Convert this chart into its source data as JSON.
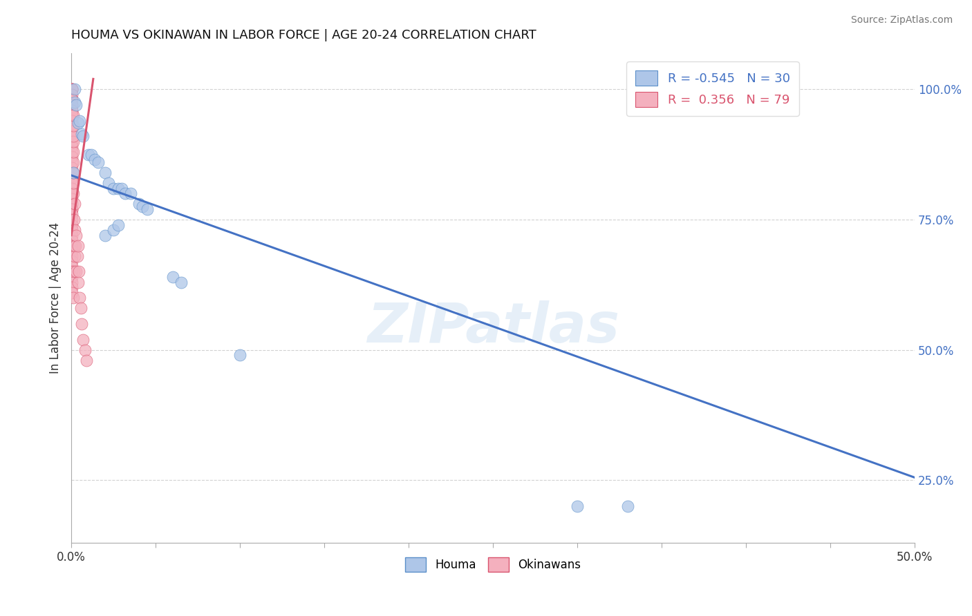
{
  "title": "HOUMA VS OKINAWAN IN LABOR FORCE | AGE 20-24 CORRELATION CHART",
  "source": "Source: ZipAtlas.com",
  "ylabel": "In Labor Force | Age 20-24",
  "xlim": [
    0.0,
    0.5
  ],
  "ylim": [
    0.13,
    1.07
  ],
  "houma_color": "#aec6e8",
  "okinawan_color": "#f4b0be",
  "houma_edge_color": "#5b8fc9",
  "okinawan_edge_color": "#d9546e",
  "houma_line_color": "#4472c4",
  "okinawan_line_color": "#d9546e",
  "legend_R_houma": "-0.545",
  "legend_N_houma": "30",
  "legend_R_okinawan": "0.356",
  "legend_N_okinawan": "79",
  "background_color": "#ffffff",
  "grid_color": "#cccccc",
  "watermark": "ZIPatlas",
  "houma_x": [
    0.001,
    0.002,
    0.002,
    0.003,
    0.004,
    0.005,
    0.006,
    0.007,
    0.01,
    0.012,
    0.014,
    0.016,
    0.02,
    0.022,
    0.025,
    0.028,
    0.03,
    0.032,
    0.035,
    0.04,
    0.042,
    0.045,
    0.06,
    0.065,
    0.1,
    0.3,
    0.33,
    0.02,
    0.025,
    0.028
  ],
  "houma_y": [
    0.84,
    1.0,
    0.975,
    0.97,
    0.935,
    0.94,
    0.915,
    0.91,
    0.875,
    0.875,
    0.865,
    0.86,
    0.84,
    0.82,
    0.81,
    0.81,
    0.81,
    0.8,
    0.8,
    0.78,
    0.775,
    0.77,
    0.64,
    0.63,
    0.49,
    0.2,
    0.2,
    0.72,
    0.73,
    0.74
  ],
  "okinawan_x": [
    0.0005,
    0.0005,
    0.0005,
    0.0005,
    0.0005,
    0.0005,
    0.0005,
    0.0005,
    0.0005,
    0.0005,
    0.0005,
    0.0005,
    0.0005,
    0.0005,
    0.0005,
    0.0005,
    0.0005,
    0.0005,
    0.0005,
    0.0005,
    0.0005,
    0.0005,
    0.0005,
    0.0005,
    0.0005,
    0.0005,
    0.0005,
    0.0005,
    0.0005,
    0.0005,
    0.0005,
    0.0005,
    0.0005,
    0.0005,
    0.0005,
    0.0005,
    0.0005,
    0.0005,
    0.0005,
    0.0005,
    0.0005,
    0.0005,
    0.0005,
    0.0005,
    0.0005,
    0.0005,
    0.0005,
    0.0005,
    0.0005,
    0.0005,
    0.001,
    0.001,
    0.001,
    0.001,
    0.001,
    0.001,
    0.001,
    0.001,
    0.001,
    0.001,
    0.0015,
    0.0015,
    0.0015,
    0.002,
    0.002,
    0.002,
    0.0025,
    0.003,
    0.003,
    0.0035,
    0.004,
    0.004,
    0.0045,
    0.005,
    0.0055,
    0.006,
    0.007,
    0.008,
    0.009
  ],
  "okinawan_y": [
    1.0,
    1.0,
    1.0,
    1.0,
    1.0,
    0.99,
    0.98,
    0.98,
    0.97,
    0.97,
    0.96,
    0.96,
    0.95,
    0.95,
    0.94,
    0.93,
    0.93,
    0.92,
    0.91,
    0.9,
    0.89,
    0.88,
    0.87,
    0.86,
    0.85,
    0.84,
    0.83,
    0.82,
    0.81,
    0.8,
    0.79,
    0.78,
    0.77,
    0.77,
    0.76,
    0.75,
    0.74,
    0.73,
    0.72,
    0.71,
    0.7,
    0.69,
    0.68,
    0.67,
    0.66,
    0.65,
    0.64,
    0.63,
    0.62,
    0.61,
    0.6,
    0.8,
    0.82,
    0.84,
    0.86,
    0.88,
    0.9,
    0.91,
    0.93,
    0.95,
    0.65,
    0.7,
    0.75,
    0.68,
    0.73,
    0.78,
    0.7,
    0.65,
    0.72,
    0.68,
    0.63,
    0.7,
    0.65,
    0.6,
    0.58,
    0.55,
    0.52,
    0.5,
    0.48
  ],
  "houma_trendline_x": [
    0.0,
    0.5
  ],
  "houma_trendline_y": [
    0.835,
    0.255
  ],
  "okinawan_trendline_x": [
    0.0,
    0.013
  ],
  "okinawan_trendline_y": [
    0.72,
    1.02
  ]
}
